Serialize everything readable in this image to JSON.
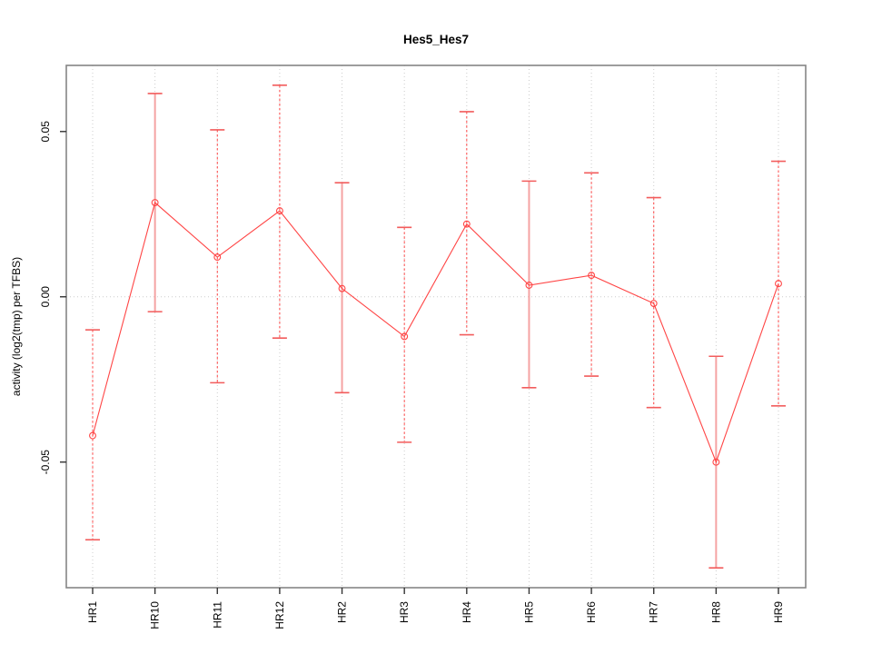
{
  "chart_data": {
    "type": "line",
    "title": "Hes5_Hes7",
    "xlabel": "",
    "ylabel": "activity (log2(tmp) per TFBS)",
    "categories": [
      "HR1",
      "HR10",
      "HR11",
      "HR12",
      "HR2",
      "HR3",
      "HR4",
      "HR5",
      "HR6",
      "HR7",
      "HR8",
      "HR9"
    ],
    "series": [
      {
        "name": "activity",
        "values": [
          -0.042,
          0.0285,
          0.012,
          0.026,
          0.0025,
          -0.012,
          0.022,
          0.0035,
          0.0065,
          -0.002,
          -0.05,
          0.004
        ],
        "error_high": [
          -0.01,
          0.0615,
          0.0505,
          0.064,
          0.0345,
          0.021,
          0.056,
          0.035,
          0.0375,
          0.03,
          -0.018,
          0.041
        ],
        "error_low": [
          -0.0735,
          -0.0045,
          -0.026,
          -0.0125,
          -0.029,
          -0.044,
          -0.0115,
          -0.0275,
          -0.024,
          -0.0335,
          -0.082,
          -0.033
        ]
      }
    ],
    "error_bar_styles": [
      "dashed",
      "solid",
      "dashed",
      "dashed",
      "solid",
      "dashed",
      "dashed",
      "solid",
      "dashed",
      "dashed",
      "solid",
      "dashed"
    ],
    "yticks": [
      0.05,
      0.0,
      -0.05
    ],
    "ytick_labels": [
      "0.05",
      "0.00",
      "-0.05"
    ],
    "ylim": [
      -0.088,
      0.07
    ],
    "grid": {
      "vertical_dotted_per_category": true,
      "horizontal_dotted_at_zero": true,
      "legend_position": "none"
    },
    "marker": "open-circle",
    "colors": {
      "line": "#ff4545",
      "point": "#ff4545",
      "error_dashed": "#ff4545",
      "error_solid": "#f5a3a3",
      "cap": "#f25c5c",
      "grid": "#cccccc",
      "box": "#858585",
      "tick": "#333333",
      "text": "#000000",
      "background": "#ffffff"
    }
  }
}
